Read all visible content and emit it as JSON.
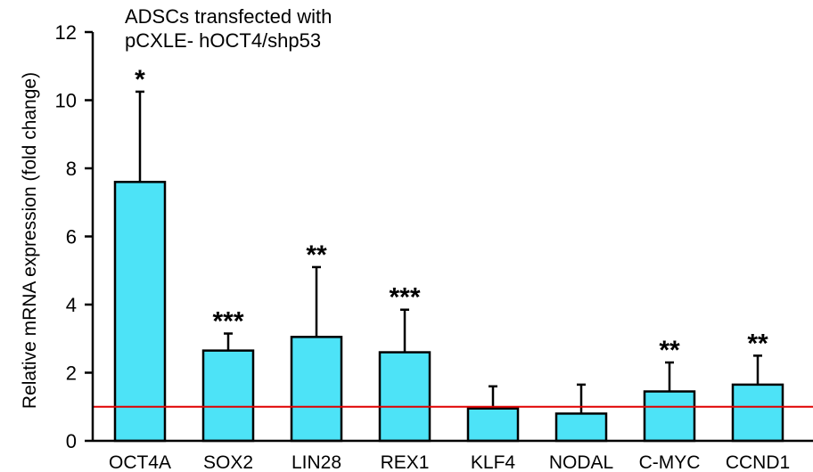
{
  "colors": {
    "bar_fill": "#4de3f7",
    "bar_stroke": "#000000",
    "baseline": "#e00000",
    "axis": "#000000"
  },
  "chart_data": {
    "type": "bar",
    "title_lines": [
      "ADSCs transfected with",
      "pCXLE- hOCT4/shp53"
    ],
    "xlabel": "",
    "ylabel": "Relative mRNA expression (fold change)",
    "ylim": [
      0,
      12
    ],
    "yticks": [
      "0",
      "2",
      "4",
      "6",
      "8",
      "10",
      "12"
    ],
    "categories": [
      "OCT4A",
      "SOX2",
      "LIN28",
      "REX1",
      "KLF4",
      "NODAL",
      "C-MYC",
      "CCND1"
    ],
    "values": [
      7.6,
      2.65,
      3.05,
      2.6,
      0.95,
      0.8,
      1.45,
      1.65
    ],
    "error_upper": [
      10.25,
      3.15,
      5.1,
      3.85,
      1.6,
      1.65,
      2.3,
      2.5
    ],
    "significance": [
      "*",
      "***",
      "**",
      "***",
      "",
      "",
      "**",
      "**"
    ],
    "reference_line": 1.0,
    "grid": false,
    "legend": "none"
  }
}
